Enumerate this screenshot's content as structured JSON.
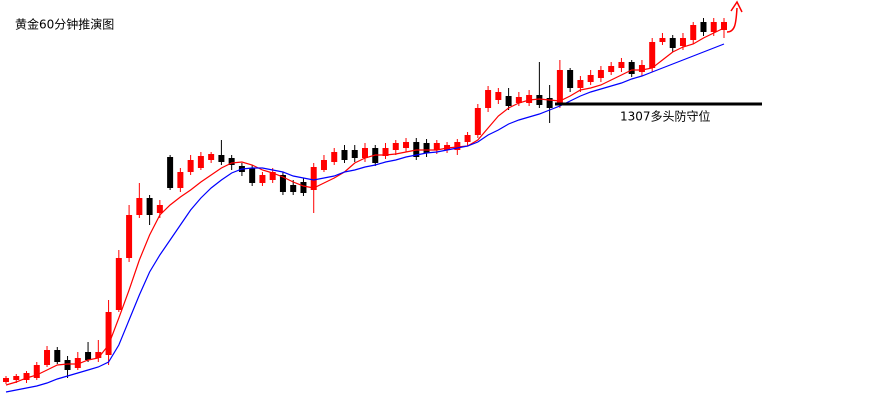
{
  "chart_data": {
    "type": "candlestick",
    "title": "黄金60分钟推演图",
    "ylim": [
      1276.8,
      1317.4
    ],
    "up_color": "#ff0000",
    "down_color": "#000000",
    "open": [
      1279.2,
      1279.4,
      1279.4,
      1279.6,
      1280.9,
      1282.4,
      1281.4,
      1280.6,
      1282.2,
      1281.6,
      1281.9,
      1286.4,
      1291.6,
      1295.9,
      1297.6,
      1296.1,
      1301.7,
      1298.6,
      1300.2,
      1300.6,
      1301.4,
      1301.9,
      1301.6,
      1300.8,
      1300.6,
      1299.1,
      1299.4,
      1299.9,
      1298.9,
      1299.2,
      1298.4,
      1300.4,
      1301.2,
      1302.4,
      1302.4,
      1301.6,
      1302.6,
      1301.8,
      1302.4,
      1302.6,
      1303.2,
      1303.1,
      1302.4,
      1302.4,
      1302.4,
      1303.2,
      1303.9,
      1306.6,
      1307.4,
      1307.8,
      1307.1,
      1307.1,
      1307.9,
      1307.6,
      1306.9,
      1310.4,
      1308.6,
      1309.2,
      1309.6,
      1310.2,
      1310.6,
      1311.2,
      1310.2,
      1310.6,
      1313.2,
      1313.6,
      1312.8,
      1313.4,
      1315.2,
      1314.2,
      1314.4
    ],
    "high": [
      1279.8,
      1280.0,
      1280.3,
      1281.2,
      1282.8,
      1282.7,
      1281.8,
      1282.2,
      1283.2,
      1283.4,
      1287.4,
      1292.4,
      1296.9,
      1299.1,
      1297.9,
      1297.4,
      1301.9,
      1300.6,
      1301.9,
      1302.2,
      1302.2,
      1303.4,
      1301.9,
      1301.1,
      1300.9,
      1300.2,
      1300.6,
      1300.2,
      1299.4,
      1299.6,
      1301.1,
      1301.9,
      1302.6,
      1302.9,
      1302.9,
      1303.1,
      1302.9,
      1303.1,
      1303.4,
      1303.6,
      1303.6,
      1303.5,
      1303.4,
      1303.2,
      1303.5,
      1304.2,
      1307.0,
      1308.8,
      1308.6,
      1308.6,
      1308.2,
      1308.4,
      1311.2,
      1308.9,
      1311.4,
      1310.6,
      1309.8,
      1310.4,
      1310.8,
      1311.2,
      1311.6,
      1311.4,
      1311.4,
      1313.6,
      1314.1,
      1313.9,
      1314.1,
      1315.2,
      1315.6,
      1315.6,
      1315.6
    ],
    "low": [
      1279.0,
      1279.1,
      1279.1,
      1279.4,
      1280.7,
      1281.0,
      1279.6,
      1280.4,
      1281.2,
      1281.2,
      1280.9,
      1286.2,
      1291.2,
      1295.6,
      1294.9,
      1295.6,
      1298.4,
      1298.2,
      1299.9,
      1300.4,
      1301.1,
      1300.9,
      1300.4,
      1299.8,
      1298.8,
      1298.8,
      1299.1,
      1297.9,
      1297.9,
      1297.8,
      1296.1,
      1300.2,
      1300.9,
      1301.1,
      1301.2,
      1301.2,
      1300.8,
      1301.5,
      1301.9,
      1302.2,
      1301.4,
      1301.7,
      1302.0,
      1302.1,
      1301.9,
      1302.8,
      1303.6,
      1306.2,
      1307.0,
      1306.4,
      1306.8,
      1306.8,
      1306.6,
      1305.1,
      1306.6,
      1308.2,
      1308.2,
      1308.9,
      1309.2,
      1309.9,
      1310.2,
      1309.7,
      1309.8,
      1310.2,
      1312.9,
      1312.2,
      1312.4,
      1313.0,
      1313.8,
      1313.8,
      1313.6
    ],
    "close": [
      1279.6,
      1279.8,
      1280.1,
      1280.9,
      1282.4,
      1281.2,
      1280.4,
      1281.6,
      1281.4,
      1282.2,
      1286.2,
      1291.6,
      1295.9,
      1297.6,
      1295.9,
      1296.9,
      1298.6,
      1300.2,
      1301.4,
      1301.8,
      1302.0,
      1301.2,
      1300.9,
      1300.2,
      1299.1,
      1299.9,
      1300.2,
      1298.2,
      1298.2,
      1298.1,
      1300.7,
      1301.4,
      1302.2,
      1301.4,
      1301.6,
      1302.6,
      1301.1,
      1302.6,
      1303.1,
      1303.2,
      1301.7,
      1302.1,
      1303.1,
      1302.9,
      1303.2,
      1303.9,
      1306.6,
      1308.4,
      1308.2,
      1306.8,
      1307.7,
      1307.9,
      1306.9,
      1306.6,
      1310.4,
      1308.6,
      1309.4,
      1309.9,
      1310.4,
      1310.8,
      1311.2,
      1310.0,
      1310.9,
      1313.2,
      1313.6,
      1312.6,
      1313.6,
      1314.9,
      1314.2,
      1315.2,
      1315.2
    ],
    "lines": [
      {
        "color": "#ff0000",
        "values": [
          1278.9,
          1279.2,
          1279.6,
          1279.9,
          1280.4,
          1280.9,
          1281.0,
          1281.0,
          1281.4,
          1281.6,
          1282.9,
          1285.6,
          1288.4,
          1291.4,
          1293.9,
          1295.9,
          1296.9,
          1297.7,
          1298.4,
          1299.2,
          1299.9,
          1300.6,
          1301.1,
          1301.2,
          1300.9,
          1300.4,
          1300.1,
          1299.7,
          1299.2,
          1298.8,
          1298.6,
          1299.1,
          1299.6,
          1300.2,
          1301.1,
          1301.6,
          1301.9,
          1301.9,
          1302.0,
          1302.2,
          1302.4,
          1302.4,
          1302.4,
          1302.6,
          1302.7,
          1302.8,
          1303.4,
          1304.6,
          1305.8,
          1306.6,
          1307.1,
          1307.4,
          1307.5,
          1307.4,
          1307.3,
          1307.8,
          1308.4,
          1308.6,
          1308.9,
          1309.4,
          1309.9,
          1310.4,
          1310.4,
          1310.6,
          1311.4,
          1312.2,
          1312.7,
          1313.0,
          1313.6,
          1314.1,
          1314.6
        ]
      },
      {
        "color": "#0000ff",
        "values": [
          1278.2,
          1278.4,
          1278.6,
          1278.8,
          1279.1,
          1279.5,
          1279.8,
          1280.1,
          1280.4,
          1280.7,
          1281.2,
          1282.9,
          1285.4,
          1287.9,
          1290.2,
          1291.9,
          1293.4,
          1294.9,
          1296.4,
          1297.6,
          1298.6,
          1299.4,
          1300.1,
          1300.5,
          1300.6,
          1300.6,
          1300.4,
          1300.2,
          1299.8,
          1299.6,
          1299.4,
          1299.6,
          1299.8,
          1300.2,
          1300.4,
          1300.7,
          1300.9,
          1301.2,
          1301.4,
          1301.7,
          1301.9,
          1302.1,
          1302.2,
          1302.4,
          1302.6,
          1302.8,
          1303.2,
          1303.9,
          1304.4,
          1305.0,
          1305.4,
          1305.7,
          1306.0,
          1306.4,
          1306.8,
          1307.3,
          1307.8,
          1308.2,
          1308.5,
          1308.8,
          1309.1,
          1309.5,
          1309.8,
          1310.2,
          1310.6,
          1311.0,
          1311.4,
          1311.8,
          1312.2,
          1312.6,
          1313.0
        ]
      }
    ],
    "support_level": {
      "value": 1307,
      "label": "1307多头防守位"
    }
  }
}
